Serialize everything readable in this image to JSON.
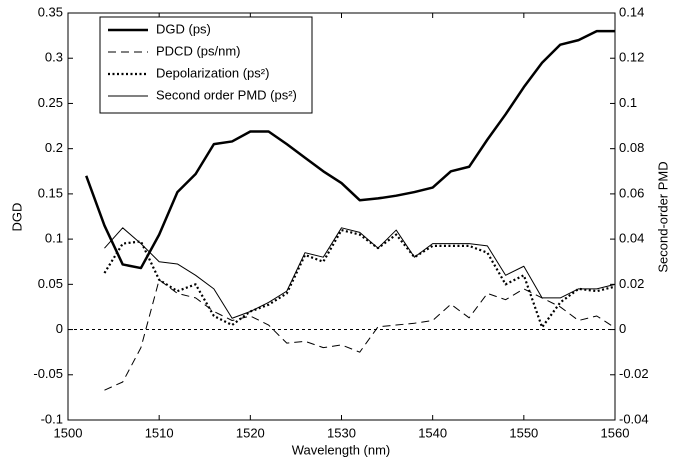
{
  "chart_data": {
    "type": "line",
    "xlabel": "Wavelength (nm)",
    "ylabel": "DGD",
    "y2label": "Second-order PMD",
    "xlim": [
      1500,
      1560
    ],
    "xticks": [
      1500,
      1510,
      1520,
      1530,
      1540,
      1550,
      1560
    ],
    "ylim": [
      -0.1,
      0.35
    ],
    "yticks": [
      -0.1,
      -0.05,
      0,
      0.05,
      0.1,
      0.15,
      0.2,
      0.25,
      0.3,
      0.35
    ],
    "y2lim": [
      -0.04,
      0.14
    ],
    "y2ticks": [
      -0.04,
      -0.02,
      0,
      0.02,
      0.04,
      0.06,
      0.08,
      0.1,
      0.12,
      0.14
    ],
    "reference_line": 0,
    "legend": "upper left",
    "series": [
      {
        "name": "DGD (ps)",
        "color": "#000000",
        "style": "solid-thick",
        "axis": "y",
        "x": [
          1502,
          1504,
          1506,
          1508,
          1510,
          1512,
          1514,
          1516,
          1518,
          1520,
          1522,
          1524,
          1526,
          1528,
          1530,
          1532,
          1534,
          1536,
          1538,
          1540,
          1542,
          1544,
          1546,
          1548,
          1550,
          1552,
          1554,
          1556,
          1558,
          1560
        ],
        "values": [
          0.17,
          0.115,
          0.072,
          0.068,
          0.105,
          0.152,
          0.172,
          0.205,
          0.208,
          0.219,
          0.219,
          0.205,
          0.19,
          0.175,
          0.162,
          0.143,
          0.145,
          0.148,
          0.152,
          0.157,
          0.175,
          0.18,
          0.21,
          0.238,
          0.268,
          0.295,
          0.315,
          0.32,
          0.33,
          0.33
        ]
      },
      {
        "name": "PDCD (ps/nm)",
        "color": "#000000",
        "style": "dashed",
        "axis": "y",
        "x": [
          1504,
          1506,
          1508,
          1510,
          1512,
          1514,
          1516,
          1518,
          1520,
          1522,
          1524,
          1526,
          1528,
          1530,
          1532,
          1534,
          1536,
          1538,
          1540,
          1542,
          1544,
          1546,
          1548,
          1550,
          1552,
          1554,
          1556,
          1558,
          1560
        ],
        "values": [
          -0.067,
          -0.058,
          -0.02,
          0.055,
          0.04,
          0.035,
          0.02,
          0.01,
          0.015,
          0.005,
          -0.015,
          -0.013,
          -0.02,
          -0.017,
          -0.025,
          0.003,
          0.005,
          0.007,
          0.01,
          0.028,
          0.013,
          0.04,
          0.033,
          0.045,
          0.035,
          0.025,
          0.01,
          0.015,
          0.002
        ]
      },
      {
        "name": "Depolarization (ps²)",
        "color": "#000000",
        "style": "dotted",
        "axis": "y2",
        "x": [
          1504,
          1506,
          1508,
          1510,
          1512,
          1514,
          1516,
          1518,
          1520,
          1522,
          1524,
          1526,
          1528,
          1530,
          1532,
          1534,
          1536,
          1538,
          1540,
          1542,
          1544,
          1546,
          1548,
          1550,
          1552,
          1554,
          1556,
          1558,
          1560
        ],
        "values": [
          0.025,
          0.038,
          0.039,
          0.022,
          0.017,
          0.02,
          0.006,
          0.002,
          0.008,
          0.011,
          0.016,
          0.033,
          0.03,
          0.044,
          0.042,
          0.036,
          0.042,
          0.032,
          0.037,
          0.037,
          0.037,
          0.034,
          0.02,
          0.024,
          0.001,
          0.012,
          0.018,
          0.017,
          0.019
        ]
      },
      {
        "name": "Second order PMD (ps²)",
        "color": "#000000",
        "style": "solid-thin",
        "axis": "y2",
        "x": [
          1504,
          1506,
          1508,
          1510,
          1512,
          1514,
          1516,
          1518,
          1520,
          1522,
          1524,
          1526,
          1528,
          1530,
          1532,
          1534,
          1536,
          1538,
          1540,
          1542,
          1544,
          1546,
          1548,
          1550,
          1552,
          1554,
          1556,
          1558,
          1560
        ],
        "values": [
          0.036,
          0.045,
          0.038,
          0.03,
          0.029,
          0.024,
          0.018,
          0.005,
          0.008,
          0.012,
          0.017,
          0.034,
          0.032,
          0.045,
          0.043,
          0.036,
          0.044,
          0.032,
          0.038,
          0.038,
          0.038,
          0.037,
          0.024,
          0.028,
          0.014,
          0.014,
          0.018,
          0.018,
          0.02
        ]
      }
    ]
  }
}
